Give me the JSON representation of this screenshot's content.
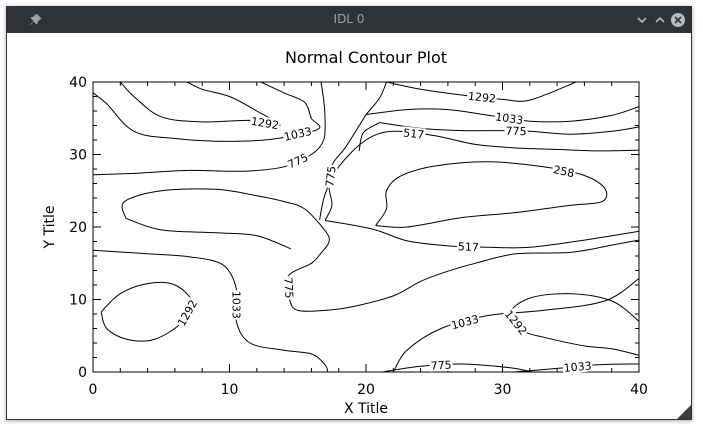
{
  "window": {
    "title": "IDL 0",
    "icons": [
      "pin-icon",
      "minimize-chevron-icon",
      "maximize-chevron-icon",
      "close-icon",
      "resize-grip-icon"
    ],
    "titlebar_color": "#2f3237"
  },
  "chart_data": {
    "type": "contour",
    "title": "Normal Contour Plot",
    "xlabel": "X Title",
    "ylabel": "Y Title",
    "xlim": [
      0,
      40
    ],
    "ylim": [
      0,
      40
    ],
    "xticks": [
      "0",
      "10",
      "20",
      "30",
      "40"
    ],
    "yticks": [
      "0",
      "10",
      "20",
      "30",
      "40"
    ],
    "levels": [
      258,
      517,
      775,
      1033,
      1292
    ],
    "contours": [
      {
        "level": 1292,
        "label": "1292",
        "points": [
          [
            6.9,
            40
          ],
          [
            8,
            39
          ],
          [
            10,
            38
          ],
          [
            12,
            36
          ],
          [
            13.7,
            34
          ],
          [
            11.5,
            34.7
          ],
          [
            8,
            34.5
          ],
          [
            5,
            35.2
          ],
          [
            3,
            38
          ],
          [
            2,
            40
          ]
        ]
      },
      {
        "level": 1033,
        "label": "1033",
        "points": [
          [
            12.3,
            40
          ],
          [
            14,
            38.5
          ],
          [
            15.5,
            37.2
          ],
          [
            16,
            35
          ],
          [
            16.5,
            33.5
          ],
          [
            13.5,
            32.2
          ],
          [
            10,
            31.8
          ],
          [
            6,
            32.2
          ],
          [
            3,
            33.2
          ],
          [
            1,
            37
          ],
          [
            0,
            38.5
          ]
        ]
      },
      {
        "level": 775,
        "label": "775",
        "points": [
          [
            0,
            27.2
          ],
          [
            3,
            27.4
          ],
          [
            7,
            27.8
          ],
          [
            11,
            27.7
          ],
          [
            14,
            28.3
          ],
          [
            16,
            30
          ],
          [
            16.9,
            32
          ],
          [
            17,
            35
          ],
          [
            16.9,
            37.5
          ],
          [
            16.7,
            40
          ]
        ]
      },
      {
        "level": 1292,
        "label": "1292",
        "points": [
          [
            21.5,
            40
          ],
          [
            24,
            39
          ],
          [
            27,
            38.2
          ],
          [
            30,
            37.6
          ],
          [
            32,
            37.5
          ],
          [
            35.4,
            40
          ]
        ]
      },
      {
        "level": 1033,
        "label": "1033",
        "points": [
          [
            20,
            35.5
          ],
          [
            23,
            36.2
          ],
          [
            26,
            36.2
          ],
          [
            29,
            35.4
          ],
          [
            32,
            34.6
          ],
          [
            35,
            34.6
          ],
          [
            38,
            35.4
          ],
          [
            40,
            36.6
          ]
        ]
      },
      {
        "level": 775,
        "label": "775",
        "points": [
          [
            21,
            34.4
          ],
          [
            24,
            33.6
          ],
          [
            27,
            33.3
          ],
          [
            30,
            33.3
          ],
          [
            32,
            33.2
          ],
          [
            35,
            32.8
          ],
          [
            38,
            33.2
          ],
          [
            40,
            33.8
          ]
        ]
      },
      {
        "level": 517,
        "label": "517",
        "points": [
          [
            16.6,
            21
          ],
          [
            17,
            24.5
          ],
          [
            18,
            28.3
          ],
          [
            20,
            32
          ],
          [
            22,
            33.2
          ],
          [
            25,
            32.6
          ],
          [
            28,
            31.4
          ],
          [
            31,
            30.9
          ],
          [
            34,
            30.7
          ],
          [
            37,
            30.5
          ],
          [
            40,
            30.6
          ]
        ]
      },
      {
        "level": 258,
        "label": "258",
        "points": [
          [
            20.7,
            20.2
          ],
          [
            21.5,
            22.5
          ],
          [
            21.5,
            25
          ],
          [
            22.5,
            27
          ],
          [
            25,
            28.4
          ],
          [
            29,
            29
          ],
          [
            33,
            28.3
          ],
          [
            36,
            27.1
          ],
          [
            37.5,
            25.3
          ],
          [
            37.3,
            23.5
          ],
          [
            35,
            23
          ],
          [
            31,
            22
          ],
          [
            27,
            21.3
          ],
          [
            23,
            20
          ],
          [
            20.7,
            20.2
          ]
        ]
      },
      {
        "level": 775,
        "label": "775",
        "points": [
          [
            2.4,
            21.2
          ],
          [
            2.3,
            23.5
          ],
          [
            5,
            25
          ],
          [
            9,
            25.2
          ],
          [
            12,
            24.3
          ],
          [
            14,
            23.5
          ],
          [
            15.5,
            22.5
          ],
          [
            17,
            19.5
          ],
          [
            17.3,
            18
          ],
          [
            16.7,
            16.4
          ],
          [
            16,
            15
          ],
          [
            14.3,
            13.2
          ],
          [
            14.4,
            10
          ],
          [
            15,
            8.5
          ],
          [
            17,
            8.5
          ],
          [
            19,
            9
          ],
          [
            22,
            10.5
          ],
          [
            24,
            12.5
          ],
          [
            26,
            13.9
          ],
          [
            28,
            15
          ],
          [
            31,
            16.3
          ],
          [
            35,
            16.5
          ],
          [
            38,
            17.5
          ],
          [
            40,
            18.2
          ]
        ]
      },
      {
        "level": 775,
        "label": "",
        "points": [
          [
            2.4,
            21.2
          ],
          [
            5,
            19.6
          ],
          [
            9,
            19.2
          ],
          [
            12,
            18.8
          ],
          [
            14.5,
            17
          ]
        ]
      },
      {
        "level": 1033,
        "label": "1033",
        "points": [
          [
            0,
            16.8
          ],
          [
            4,
            16.3
          ],
          [
            7,
            15.9
          ],
          [
            9.5,
            14.8
          ],
          [
            10.5,
            11.5
          ],
          [
            10.5,
            7
          ],
          [
            11.5,
            4
          ],
          [
            14,
            3
          ],
          [
            16,
            2.5
          ],
          [
            17,
            1
          ],
          [
            17.2,
            0
          ]
        ]
      },
      {
        "level": 517,
        "label": "517",
        "points": [
          [
            17,
            20.9
          ],
          [
            20.5,
            19.7
          ],
          [
            23,
            18.1
          ],
          [
            26,
            17.4
          ],
          [
            29,
            17.2
          ],
          [
            32,
            17.2
          ],
          [
            36,
            18.2
          ],
          [
            40,
            19.4
          ]
        ]
      },
      {
        "level": 1033,
        "label": "1033",
        "points": [
          [
            22,
            0
          ],
          [
            23,
            3
          ],
          [
            25.5,
            6
          ],
          [
            29,
            7.8
          ],
          [
            33,
            8.5
          ],
          [
            37.5,
            9.8
          ],
          [
            40,
            12.9
          ]
        ]
      },
      {
        "level": 1033,
        "label": "1033",
        "points": [
          [
            30.8,
            0
          ],
          [
            34,
            0.5
          ],
          [
            37,
            1
          ],
          [
            40,
            1.1
          ]
        ]
      },
      {
        "level": 775,
        "label": "775",
        "points": [
          [
            21.2,
            0
          ],
          [
            24,
            0.8
          ],
          [
            27,
            1.1
          ],
          [
            30.5,
            0.6
          ],
          [
            32.2,
            0
          ]
        ]
      },
      {
        "level": 1292,
        "label": "1292",
        "points": [
          [
            40,
            7
          ],
          [
            38,
            9.8
          ],
          [
            35,
            10.8
          ],
          [
            32,
            10.2
          ],
          [
            30.5,
            8
          ],
          [
            31.5,
            5.7
          ],
          [
            33,
            4.8
          ],
          [
            36,
            3.6
          ],
          [
            38,
            3.2
          ],
          [
            40,
            2.3
          ]
        ]
      },
      {
        "level": 1292,
        "label": "1292",
        "points": [
          [
            0.6,
            8.3
          ],
          [
            2,
            10.8
          ],
          [
            4,
            12.2
          ],
          [
            6,
            12
          ],
          [
            7.3,
            9.5
          ],
          [
            6.5,
            6.8
          ],
          [
            4.5,
            4.5
          ],
          [
            2.5,
            4.5
          ],
          [
            1,
            6
          ],
          [
            0.6,
            8.3
          ]
        ]
      },
      {
        "level": 775,
        "label": "775",
        "points": [
          [
            17,
            20.9
          ],
          [
            17.5,
            23
          ],
          [
            17.3,
            25.5
          ],
          [
            17.5,
            28.5
          ],
          [
            18.5,
            31
          ],
          [
            20,
            35.5
          ]
        ]
      },
      {
        "level": 1033,
        "label": "",
        "points": [
          [
            21.5,
            40
          ],
          [
            21,
            37.8
          ],
          [
            20,
            35.5
          ]
        ]
      },
      {
        "level": 1033,
        "label": "",
        "points": [
          [
            21,
            34.4
          ],
          [
            19.8,
            33
          ],
          [
            19.5,
            30.5
          ]
        ]
      }
    ]
  }
}
